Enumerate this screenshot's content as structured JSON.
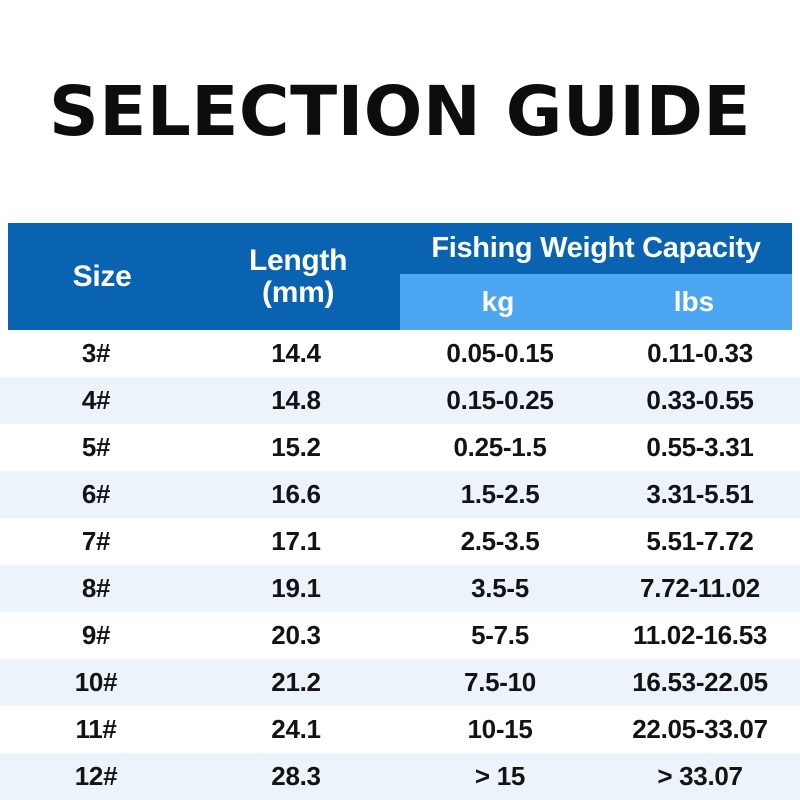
{
  "title": "SELECTION GUIDE",
  "colors": {
    "header_bg": "#0a63b0",
    "subheader_bg": "#4da6f2",
    "row_tint_bg": "#edf3fb",
    "row_bg": "#ffffff",
    "header_text": "#ffffff",
    "cell_text": "#131313",
    "title_text": "#0d0d0d"
  },
  "header": {
    "size": "Size",
    "length_line1": "Length",
    "length_line2": "(mm)",
    "capacity": "Fishing Weight Capacity",
    "kg": "kg",
    "lbs": "lbs"
  },
  "chart_data": {
    "type": "table",
    "title": "SELECTION GUIDE",
    "columns": [
      "Size",
      "Length (mm)",
      "kg",
      "lbs"
    ],
    "column_groups": [
      {
        "label": "Fishing Weight Capacity",
        "columns": [
          "kg",
          "lbs"
        ]
      }
    ],
    "rows": [
      [
        "3#",
        "14.4",
        "0.05-0.15",
        "0.11-0.33"
      ],
      [
        "4#",
        "14.8",
        "0.15-0.25",
        "0.33-0.55"
      ],
      [
        "5#",
        "15.2",
        "0.25-1.5",
        "0.55-3.31"
      ],
      [
        "6#",
        "16.6",
        "1.5-2.5",
        "3.31-5.51"
      ],
      [
        "7#",
        "17.1",
        "2.5-3.5",
        "5.51-7.72"
      ],
      [
        "8#",
        "19.1",
        "3.5-5",
        "7.72-11.02"
      ],
      [
        "9#",
        "20.3",
        "5-7.5",
        "11.02-16.53"
      ],
      [
        "10#",
        "21.2",
        "7.5-10",
        "16.53-22.05"
      ],
      [
        "11#",
        "24.1",
        "10-15",
        "22.05-33.07"
      ],
      [
        "12#",
        "28.3",
        "> 15",
        "> 33.07"
      ]
    ]
  }
}
